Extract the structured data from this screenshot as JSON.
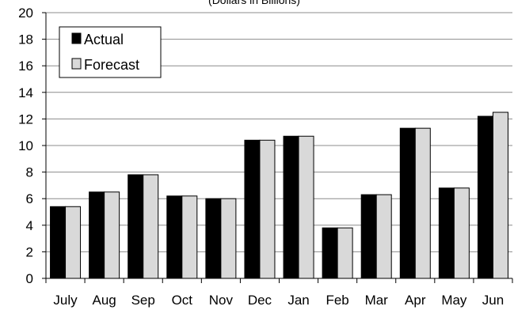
{
  "chart_data": {
    "type": "bar",
    "subtitle": "(Dollars in Billions)",
    "categories": [
      "July",
      "Aug",
      "Sep",
      "Oct",
      "Nov",
      "Dec",
      "Jan",
      "Feb",
      "Mar",
      "Apr",
      "May",
      "Jun"
    ],
    "series": [
      {
        "name": "Actual",
        "color": "#000000",
        "values": [
          5.4,
          6.5,
          7.8,
          6.2,
          6.0,
          10.4,
          10.7,
          3.8,
          6.3,
          11.3,
          6.8,
          12.2
        ]
      },
      {
        "name": "Forecast",
        "color": "#d9d9d9",
        "values": [
          5.4,
          6.5,
          7.8,
          6.2,
          6.0,
          10.4,
          10.7,
          3.8,
          6.3,
          11.3,
          6.8,
          12.5
        ]
      }
    ],
    "y_ticks": [
      "0",
      "2",
      "4",
      "6",
      "8",
      "10",
      "12",
      "14",
      "16",
      "18",
      "20"
    ],
    "ylim": [
      0,
      20
    ],
    "grid": true,
    "legend": "top-left"
  }
}
